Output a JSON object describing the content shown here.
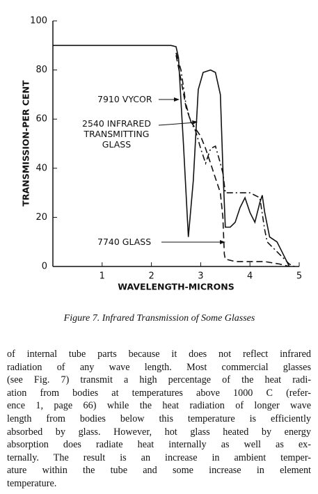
{
  "chart_data": {
    "type": "line",
    "xlabel": "WAVELENGTH-MICRONS",
    "ylabel": "TRANSMISSION-PER CENT",
    "caption": "Figure 7. Infrared Transmission of Some Glasses",
    "xlim": [
      0,
      5
    ],
    "xticks": [
      1,
      2,
      3,
      4,
      5
    ],
    "ylim": [
      0,
      100
    ],
    "yticks": [
      0,
      20,
      40,
      60,
      80,
      100
    ],
    "series": [
      {
        "name": "7910 VYCOR",
        "color": "#111111",
        "style": "solid",
        "x": [
          0,
          2.4,
          2.5,
          2.55,
          2.65,
          2.75,
          2.85,
          2.95,
          3.05,
          3.2,
          3.3,
          3.4,
          3.45,
          3.5,
          3.6,
          3.7,
          3.8,
          3.9,
          4.0,
          4.1,
          4.2,
          4.25,
          4.3,
          4.4,
          4.55,
          4.65,
          4.8
        ],
        "values": [
          90,
          90,
          89.5,
          85,
          50,
          12,
          35,
          72,
          79,
          80,
          79,
          70,
          40,
          16,
          16,
          18,
          24,
          28,
          22,
          18,
          26,
          29,
          22,
          12,
          10,
          6,
          0
        ]
      },
      {
        "name": "2540 INFRARED\nTRANSMITTING\nGLASS",
        "color": "#111111",
        "style": "dashdot",
        "x": [
          2.5,
          2.6,
          2.7,
          2.8,
          2.9,
          3.0,
          3.1,
          3.2,
          3.3,
          3.4,
          3.45,
          3.5,
          3.6,
          3.8,
          4.0,
          4.2,
          4.3,
          4.35,
          4.5,
          4.6,
          4.7,
          4.8,
          4.9
        ],
        "values": [
          87,
          80,
          66,
          59,
          55,
          48,
          42,
          48,
          49,
          42,
          38,
          30,
          30,
          30,
          30,
          28,
          15,
          10,
          7,
          5,
          3,
          1,
          0
        ]
      },
      {
        "name": "7740 GLASS",
        "color": "#111111",
        "style": "dashed",
        "x": [
          2.5,
          2.6,
          2.7,
          2.8,
          2.9,
          3.0,
          3.1,
          3.2,
          3.3,
          3.4,
          3.45,
          3.48,
          3.5,
          3.7,
          4.0,
          4.3,
          4.6,
          4.8
        ],
        "values": [
          86,
          76,
          65,
          59,
          56,
          53,
          48,
          42,
          36,
          30,
          20,
          5,
          3,
          2,
          2,
          2,
          1,
          0
        ]
      }
    ]
  },
  "body": {
    "lines": [
      "of internal tube parts because it does not reflect infrared",
      "radiation of any wave length. Most commercial glasses",
      "(see Fig. 7) transmit a high percentage of the heat radi-",
      "ation from bodies at temperatures above 1000 C (refer-",
      "ence 1, page 66) while the heat radiation of longer wave",
      "length from bodies below this temperature is efficiently",
      "absorbed by glass. However, hot glass heated by energy",
      "absorption does radiate heat internally as well as ex-",
      "ternally. The result is an increase in ambient temper-",
      "ature within the tube and some increase in element",
      "temperature."
    ]
  }
}
